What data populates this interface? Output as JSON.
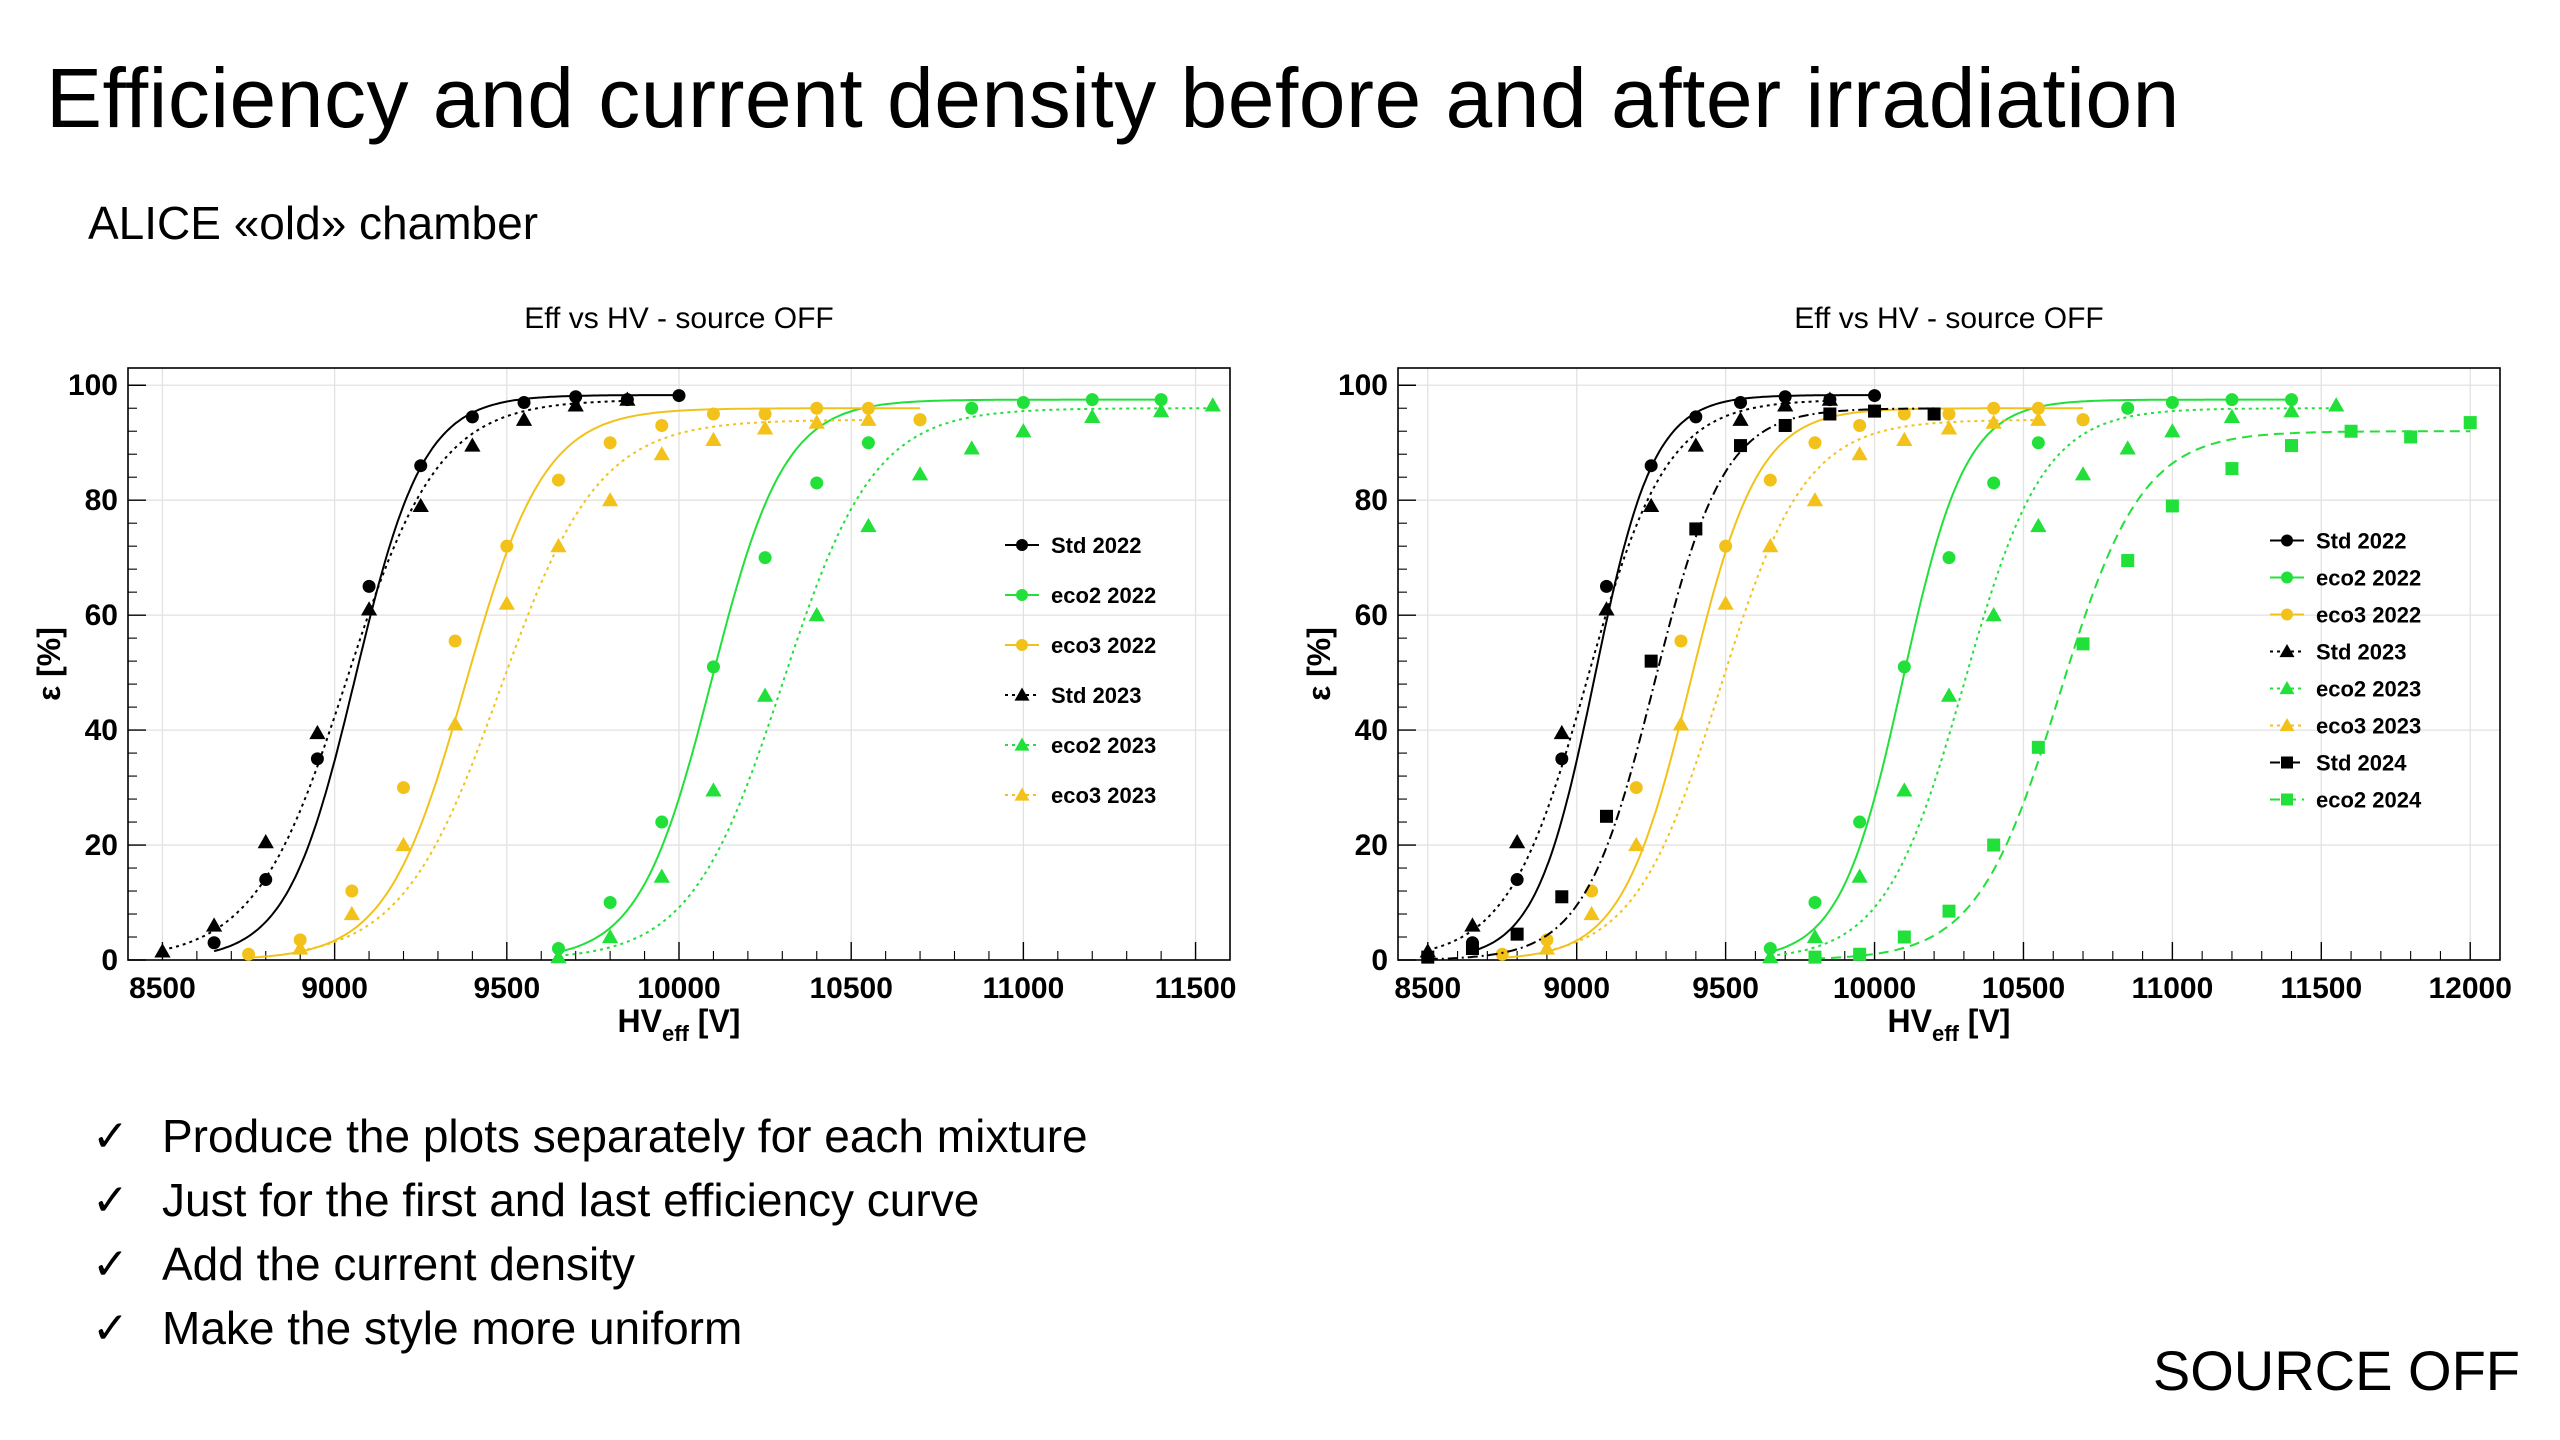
{
  "slide": {
    "title": "Efficiency and current density before and after irradiation",
    "subtitle": "ALICE «old» chamber",
    "bullets": [
      "Produce the plots separately for each mixture",
      "Just for the first and last efficiency curve",
      "Add the current density",
      "Make the style more uniform"
    ],
    "corner_label": "SOURCE OFF",
    "check_glyph": "✓"
  },
  "chart_data": [
    {
      "type": "scatter",
      "title": "Eff vs HV - source OFF",
      "xlabel": "HV",
      "xlabel_sub": "eff",
      "xlabel_unit": " [V]",
      "ylabel": "ε [%]",
      "xlim": [
        8400,
        11600
      ],
      "ylim": [
        0,
        103
      ],
      "xticks": [
        8500,
        9000,
        9500,
        10000,
        10500,
        11000,
        11500
      ],
      "yticks": [
        0,
        20,
        40,
        60,
        80,
        100
      ],
      "grid": true,
      "legend_position": "right-middle",
      "series": [
        {
          "name": "Std 2022",
          "color": "#000000",
          "marker": "circle",
          "dash": "solid",
          "fit": {
            "emax": 98.3,
            "x50": 9060,
            "lambda": 0.0101
          },
          "points": [
            [
              8650,
              3
            ],
            [
              8800,
              14
            ],
            [
              8950,
              35
            ],
            [
              9100,
              65
            ],
            [
              9250,
              86
            ],
            [
              9400,
              94.5
            ],
            [
              9550,
              97
            ],
            [
              9700,
              98
            ],
            [
              9850,
              97.5
            ],
            [
              10000,
              98.2
            ]
          ]
        },
        {
          "name": "eco2 2022",
          "color": "#22e03a",
          "marker": "circle",
          "dash": "solid",
          "fit": {
            "emax": 97.5,
            "x50": 10095,
            "lambda": 0.0095
          },
          "points": [
            [
              9650,
              2
            ],
            [
              9800,
              10
            ],
            [
              9950,
              24
            ],
            [
              10100,
              51
            ],
            [
              10250,
              70
            ],
            [
              10400,
              83
            ],
            [
              10550,
              90
            ],
            [
              10700,
              94
            ],
            [
              10850,
              96
            ],
            [
              11000,
              97
            ],
            [
              11200,
              97.5
            ],
            [
              11400,
              97.5
            ]
          ]
        },
        {
          "name": "eco3 2022",
          "color": "#f2c21b",
          "marker": "circle",
          "dash": "solid",
          "fit": {
            "emax": 96,
            "x50": 9380,
            "lambda": 0.0087
          },
          "points": [
            [
              8750,
              1
            ],
            [
              8900,
              3.5
            ],
            [
              9050,
              12
            ],
            [
              9200,
              30
            ],
            [
              9350,
              55.5
            ],
            [
              9500,
              72
            ],
            [
              9650,
              83.5
            ],
            [
              9800,
              90
            ],
            [
              9950,
              93
            ],
            [
              10100,
              95
            ],
            [
              10250,
              95
            ],
            [
              10400,
              96
            ],
            [
              10550,
              96
            ],
            [
              10700,
              94
            ]
          ]
        },
        {
          "name": "Std 2023",
          "color": "#000000",
          "marker": "triangle",
          "dash": "dotted",
          "fit": {
            "emax": 97.5,
            "x50": 9035,
            "lambda": 0.0075
          },
          "points": [
            [
              8500,
              1.5
            ],
            [
              8650,
              6
            ],
            [
              8800,
              20.5
            ],
            [
              8950,
              39.5
            ],
            [
              9100,
              61
            ],
            [
              9250,
              79
            ],
            [
              9400,
              89.5
            ],
            [
              9550,
              94
            ],
            [
              9700,
              96.5
            ],
            [
              9850,
              97.5
            ]
          ]
        },
        {
          "name": "eco2 2023",
          "color": "#22e03a",
          "marker": "triangle",
          "dash": "dotted",
          "fit": {
            "emax": 96,
            "x50": 10300,
            "lambda": 0.0075
          },
          "points": [
            [
              9650,
              0.5
            ],
            [
              9800,
              4
            ],
            [
              9950,
              14.5
            ],
            [
              10100,
              29.5
            ],
            [
              10250,
              46
            ],
            [
              10400,
              60
            ],
            [
              10550,
              75.5
            ],
            [
              10700,
              84.5
            ],
            [
              10850,
              89
            ],
            [
              11000,
              92
            ],
            [
              11200,
              94.5
            ],
            [
              11400,
              95.5
            ],
            [
              11550,
              96.5
            ]
          ]
        },
        {
          "name": "eco3 2023",
          "color": "#f2c21b",
          "marker": "triangle",
          "dash": "dotted",
          "fit": {
            "emax": 94,
            "x50": 9480,
            "lambda": 0.007
          },
          "points": [
            [
              8900,
              2
            ],
            [
              9050,
              8
            ],
            [
              9200,
              20
            ],
            [
              9350,
              41
            ],
            [
              9500,
              62
            ],
            [
              9650,
              72
            ],
            [
              9800,
              80
            ],
            [
              9950,
              88
            ],
            [
              10100,
              90.5
            ],
            [
              10250,
              92.5
            ],
            [
              10400,
              93.5
            ],
            [
              10550,
              94
            ]
          ]
        }
      ]
    },
    {
      "type": "scatter",
      "title": "Eff vs HV - source OFF",
      "xlabel": "HV",
      "xlabel_sub": "eff",
      "xlabel_unit": " [V]",
      "ylabel": "ε [%]",
      "xlim": [
        8400,
        12100
      ],
      "ylim": [
        0,
        103
      ],
      "xticks": [
        8500,
        9000,
        9500,
        10000,
        10500,
        11000,
        11500,
        12000
      ],
      "yticks": [
        0,
        20,
        40,
        60,
        80,
        100
      ],
      "grid": true,
      "legend_position": "right-middle",
      "series": [
        {
          "name": "Std 2022",
          "color": "#000000",
          "marker": "circle",
          "dash": "solid",
          "fit": {
            "emax": 98.3,
            "x50": 9060,
            "lambda": 0.0101
          },
          "points": [
            [
              8650,
              3
            ],
            [
              8800,
              14
            ],
            [
              8950,
              35
            ],
            [
              9100,
              65
            ],
            [
              9250,
              86
            ],
            [
              9400,
              94.5
            ],
            [
              9550,
              97
            ],
            [
              9700,
              98
            ],
            [
              9850,
              97.5
            ],
            [
              10000,
              98.2
            ]
          ]
        },
        {
          "name": "eco2 2022",
          "color": "#22e03a",
          "marker": "circle",
          "dash": "solid",
          "fit": {
            "emax": 97.5,
            "x50": 10095,
            "lambda": 0.0095
          },
          "points": [
            [
              9650,
              2
            ],
            [
              9800,
              10
            ],
            [
              9950,
              24
            ],
            [
              10100,
              51
            ],
            [
              10250,
              70
            ],
            [
              10400,
              83
            ],
            [
              10550,
              90
            ],
            [
              10700,
              94
            ],
            [
              10850,
              96
            ],
            [
              11000,
              97
            ],
            [
              11200,
              97.5
            ],
            [
              11400,
              97.5
            ]
          ]
        },
        {
          "name": "eco3 2022",
          "color": "#f2c21b",
          "marker": "circle",
          "dash": "solid",
          "fit": {
            "emax": 96,
            "x50": 9380,
            "lambda": 0.0087
          },
          "points": [
            [
              8750,
              1
            ],
            [
              8900,
              3.5
            ],
            [
              9050,
              12
            ],
            [
              9200,
              30
            ],
            [
              9350,
              55.5
            ],
            [
              9500,
              72
            ],
            [
              9650,
              83.5
            ],
            [
              9800,
              90
            ],
            [
              9950,
              93
            ],
            [
              10100,
              95
            ],
            [
              10250,
              95
            ],
            [
              10400,
              96
            ],
            [
              10550,
              96
            ],
            [
              10700,
              94
            ]
          ]
        },
        {
          "name": "Std 2023",
          "color": "#000000",
          "marker": "triangle",
          "dash": "dotted",
          "fit": {
            "emax": 97.5,
            "x50": 9035,
            "lambda": 0.0075
          },
          "points": [
            [
              8500,
              1.5
            ],
            [
              8650,
              6
            ],
            [
              8800,
              20.5
            ],
            [
              8950,
              39.5
            ],
            [
              9100,
              61
            ],
            [
              9250,
              79
            ],
            [
              9400,
              89.5
            ],
            [
              9550,
              94
            ],
            [
              9700,
              96.5
            ],
            [
              9850,
              97.5
            ]
          ]
        },
        {
          "name": "eco2 2023",
          "color": "#22e03a",
          "marker": "triangle",
          "dash": "dotted",
          "fit": {
            "emax": 96,
            "x50": 10300,
            "lambda": 0.0075
          },
          "points": [
            [
              9650,
              0.5
            ],
            [
              9800,
              4
            ],
            [
              9950,
              14.5
            ],
            [
              10100,
              29.5
            ],
            [
              10250,
              46
            ],
            [
              10400,
              60
            ],
            [
              10550,
              75.5
            ],
            [
              10700,
              84.5
            ],
            [
              10850,
              89
            ],
            [
              11000,
              92
            ],
            [
              11200,
              94.5
            ],
            [
              11400,
              95.5
            ],
            [
              11550,
              96.5
            ]
          ]
        },
        {
          "name": "eco3 2023",
          "color": "#f2c21b",
          "marker": "triangle",
          "dash": "dotted",
          "fit": {
            "emax": 94,
            "x50": 9480,
            "lambda": 0.007
          },
          "points": [
            [
              8900,
              2
            ],
            [
              9050,
              8
            ],
            [
              9200,
              20
            ],
            [
              9350,
              41
            ],
            [
              9500,
              62
            ],
            [
              9650,
              72
            ],
            [
              9800,
              80
            ],
            [
              9950,
              88
            ],
            [
              10100,
              90.5
            ],
            [
              10250,
              92.5
            ],
            [
              10400,
              93.5
            ],
            [
              10550,
              94
            ]
          ]
        },
        {
          "name": "Std 2024",
          "color": "#000000",
          "marker": "square",
          "dash": "dashdot",
          "fit": {
            "emax": 96,
            "x50": 9260,
            "lambda": 0.0085
          },
          "points": [
            [
              8500,
              0.5
            ],
            [
              8650,
              2
            ],
            [
              8800,
              4.5
            ],
            [
              8950,
              11
            ],
            [
              9100,
              25
            ],
            [
              9250,
              52
            ],
            [
              9400,
              75
            ],
            [
              9550,
              89.5
            ],
            [
              9700,
              93
            ],
            [
              9850,
              95
            ],
            [
              10000,
              95.5
            ],
            [
              10200,
              95
            ]
          ]
        },
        {
          "name": "eco2 2024",
          "color": "#22e03a",
          "marker": "square",
          "dash": "dashed",
          "fit": {
            "emax": 92,
            "x50": 10620,
            "lambda": 0.0072
          },
          "points": [
            [
              9800,
              0.5
            ],
            [
              9950,
              1
            ],
            [
              10100,
              4
            ],
            [
              10250,
              8.5
            ],
            [
              10400,
              20
            ],
            [
              10550,
              37
            ],
            [
              10700,
              55
            ],
            [
              10850,
              69.5
            ],
            [
              11000,
              79
            ],
            [
              11200,
              85.5
            ],
            [
              11400,
              89.5
            ],
            [
              11600,
              92
            ],
            [
              11800,
              91
            ],
            [
              12000,
              93.5
            ]
          ]
        }
      ]
    }
  ]
}
